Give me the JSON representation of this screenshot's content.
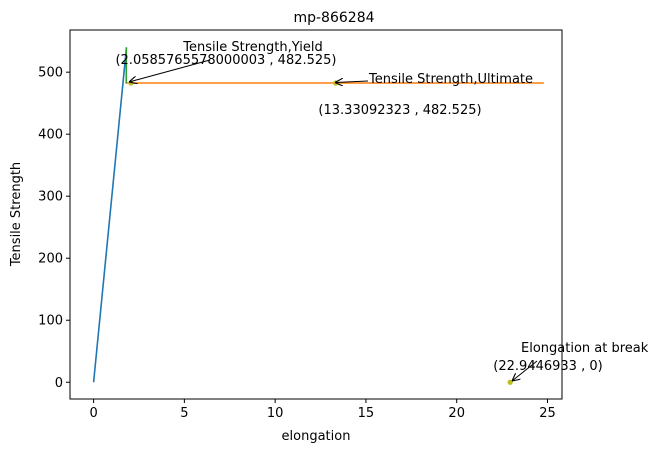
{
  "chart_data": {
    "type": "line",
    "title": "mp-866284",
    "xlabel": "elongation",
    "ylabel": "Tensile Strength",
    "xlim": [
      -1.3,
      25.8
    ],
    "ylim": [
      -27,
      568
    ],
    "xticks": [
      0,
      5,
      10,
      15,
      20,
      25
    ],
    "yticks": [
      0,
      100,
      200,
      300,
      400,
      500
    ],
    "grid": false,
    "series": [
      {
        "color": "#1f77b4",
        "x": [
          0,
          1.81
        ],
        "y": [
          0,
          540
        ]
      },
      {
        "color": "#ff7f0e",
        "x": [
          1.75,
          24.8
        ],
        "y": [
          482.525,
          482.525
        ]
      },
      {
        "color": "#2ca02c",
        "x": [
          1.8,
          1.8
        ],
        "y": [
          482.525,
          540
        ]
      }
    ],
    "points": [
      {
        "color": "#bcbd22",
        "x": 2.0585765578000004,
        "y": 482.525
      },
      {
        "color": "#bcbd22",
        "x": 13.33092323,
        "y": 482.525
      },
      {
        "color": "#bcbd22",
        "x": 22.9446933,
        "y": 0
      }
    ],
    "annotations": [
      {
        "label": "Tensile Strength,Yield",
        "coords": "(2.0585765578000003 , 482.525)",
        "x": 2.0585765578000004,
        "y": 482.525
      },
      {
        "label": "Tensile Strength,Ultimate",
        "coords": "(13.33092323 , 482.525)",
        "x": 13.33092323,
        "y": 482.525
      },
      {
        "label": "Elongation at break",
        "coords": "(22.9446933 , 0)",
        "x": 22.9446933,
        "y": 0
      }
    ]
  }
}
